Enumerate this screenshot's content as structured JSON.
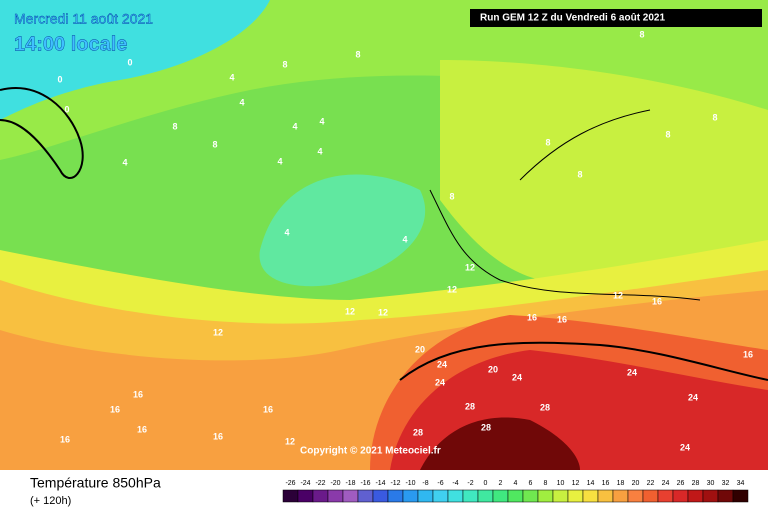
{
  "header": {
    "date": "Mercredi 11 août 2021",
    "time": "14:00 locale",
    "run": "Run GEM 12 Z du Vendredi 6 août 2021"
  },
  "copyright": "Copyright © 2021 Meteociel.fr",
  "footer": {
    "title": "Température 850hPa",
    "lead": "(+ 120h)"
  },
  "scale": {
    "values": [
      -26,
      -24,
      -22,
      -20,
      -18,
      -16,
      -14,
      -12,
      -10,
      -8,
      -6,
      -4,
      -2,
      0,
      2,
      4,
      6,
      8,
      10,
      12,
      14,
      16,
      18,
      20,
      22,
      24,
      26,
      28,
      30,
      32,
      34
    ],
    "colors": [
      "#2b0038",
      "#4a0066",
      "#6a1a8a",
      "#8a3aaa",
      "#a05cc0",
      "#6060d0",
      "#3a5ae0",
      "#2a7ae8",
      "#2a9af0",
      "#30b8f0",
      "#40d0f0",
      "#40e0e0",
      "#40e8c0",
      "#40e8a0",
      "#40e880",
      "#50e860",
      "#70e850",
      "#a0ee40",
      "#c8f040",
      "#e8f040",
      "#f8e040",
      "#f8c040",
      "#f8a040",
      "#f88040",
      "#f06030",
      "#e84030",
      "#d82828",
      "#c01818",
      "#a01010",
      "#700808",
      "#300000"
    ]
  },
  "contour_labels": [
    0,
    0,
    0,
    4,
    4,
    8,
    4,
    8,
    4,
    4,
    4,
    4,
    4,
    4,
    8,
    8,
    8,
    8,
    8,
    8,
    8,
    8,
    12,
    12,
    12,
    16,
    12,
    12,
    12,
    16,
    16,
    20,
    20,
    24,
    24,
    24,
    24,
    24,
    28,
    28,
    28,
    28,
    16,
    16,
    16,
    16,
    16,
    16,
    12,
    24,
    16
  ]
}
